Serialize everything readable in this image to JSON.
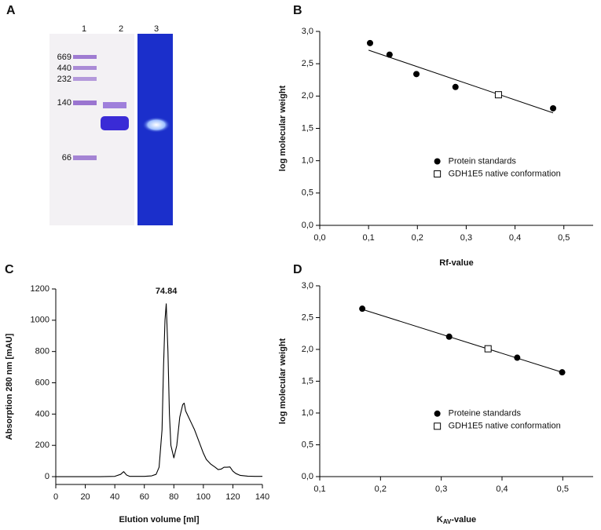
{
  "gel": {
    "panel_label": "A",
    "lanes": [
      "1",
      "2",
      "3"
    ],
    "markers": [
      "669",
      "440",
      "232",
      "140",
      "66"
    ]
  },
  "chart_data": [
    {
      "type": "scatter",
      "panel_label": "B",
      "x_label": "Rf-value",
      "y_label": "log molecular weight",
      "xlim": [
        0,
        0.56
      ],
      "ylim": [
        0,
        3
      ],
      "xticks": [
        {
          "value": 0,
          "label": "0,0"
        },
        {
          "value": 0.1,
          "label": "0,1"
        },
        {
          "value": 0.2,
          "label": "0,2"
        },
        {
          "value": 0.3,
          "label": "0,3"
        },
        {
          "value": 0.4,
          "label": "0,4"
        },
        {
          "value": 0.5,
          "label": "0,5"
        }
      ],
      "yticks": [
        {
          "value": 0,
          "label": "0,0"
        },
        {
          "value": 0.5,
          "label": "0,5"
        },
        {
          "value": 1,
          "label": "1,0"
        },
        {
          "value": 1.5,
          "label": "1,5"
        },
        {
          "value": 2,
          "label": "2,0"
        },
        {
          "value": 2.5,
          "label": "2,5"
        },
        {
          "value": 3,
          "label": "3,0"
        }
      ],
      "legend": "lower right",
      "series": [
        {
          "name": "Protein standards",
          "marker": "filled-circle",
          "color": "#000000",
          "x": [
            0.103,
            0.143,
            0.198,
            0.278,
            0.478
          ],
          "values": [
            2.82,
            2.64,
            2.34,
            2.14,
            1.81
          ]
        },
        {
          "name": "GDH1E5 native conformation",
          "marker": "open-square",
          "color": "#000000",
          "x": [
            0.366
          ],
          "values": [
            2.02
          ]
        }
      ],
      "fit": {
        "x": [
          0.1,
          0.478
        ],
        "values": [
          2.71,
          1.74
        ]
      }
    },
    {
      "type": "line",
      "panel_label": "C",
      "x_label": "Elution volume [ml]",
      "y_label": "Absorption 280 nm [mAU]",
      "xlim": [
        0,
        140
      ],
      "ylim": [
        -50,
        1200
      ],
      "xticks": [
        0,
        20,
        40,
        60,
        80,
        100,
        120,
        140
      ],
      "yticks": [
        0,
        200,
        400,
        600,
        800,
        1000,
        1200
      ],
      "color": "#000000",
      "x": [
        0,
        10,
        20,
        30,
        40,
        44,
        46,
        48,
        50,
        60,
        65,
        68,
        70,
        72,
        73,
        74,
        74.84,
        76,
        77,
        78,
        80,
        82,
        84,
        86,
        87,
        88,
        90,
        92,
        94,
        96,
        98,
        100,
        102,
        105,
        108,
        110,
        112,
        114,
        116,
        118,
        120,
        122,
        125,
        130,
        135,
        140
      ],
      "values": [
        0,
        0,
        0,
        0,
        2,
        15,
        32,
        10,
        2,
        2,
        5,
        15,
        60,
        300,
        700,
        1000,
        1105,
        800,
        400,
        200,
        120,
        200,
        380,
        460,
        470,
        420,
        380,
        340,
        300,
        250,
        200,
        150,
        110,
        80,
        60,
        45,
        48,
        60,
        60,
        62,
        35,
        20,
        8,
        3,
        2,
        2
      ],
      "annotation": {
        "text": "74.84",
        "x": 74.84,
        "y": 1105
      }
    },
    {
      "type": "scatter",
      "panel_label": "D",
      "x_label": {
        "main": "K",
        "sub": "AV",
        "rest": "-value"
      },
      "y_label": "log molecular weight",
      "xlim": [
        0.1,
        0.55
      ],
      "ylim": [
        0,
        3
      ],
      "xticks": [
        {
          "value": 0.1,
          "label": "0,1"
        },
        {
          "value": 0.2,
          "label": "0,2"
        },
        {
          "value": 0.3,
          "label": "0,3"
        },
        {
          "value": 0.4,
          "label": "0,4"
        },
        {
          "value": 0.5,
          "label": "0,5"
        }
      ],
      "yticks": [
        {
          "value": 0,
          "label": "0,0"
        },
        {
          "value": 0.5,
          "label": "0,5"
        },
        {
          "value": 1,
          "label": "1,0"
        },
        {
          "value": 1.5,
          "label": "1,5"
        },
        {
          "value": 2,
          "label": "2,0"
        },
        {
          "value": 2.5,
          "label": "2,5"
        },
        {
          "value": 3,
          "label": "3,0"
        }
      ],
      "legend": "lower right",
      "series": [
        {
          "name": "Proteine standards",
          "marker": "filled-circle",
          "color": "#000000",
          "x": [
            0.17,
            0.313,
            0.425,
            0.499
          ],
          "values": [
            2.64,
            2.2,
            1.87,
            1.64
          ]
        },
        {
          "name": "GDH1E5 native conformation",
          "marker": "open-square",
          "color": "#000000",
          "x": [
            0.377
          ],
          "values": [
            2.01
          ]
        }
      ],
      "fit": {
        "x": [
          0.17,
          0.499
        ],
        "values": [
          2.63,
          1.64
        ]
      }
    }
  ]
}
